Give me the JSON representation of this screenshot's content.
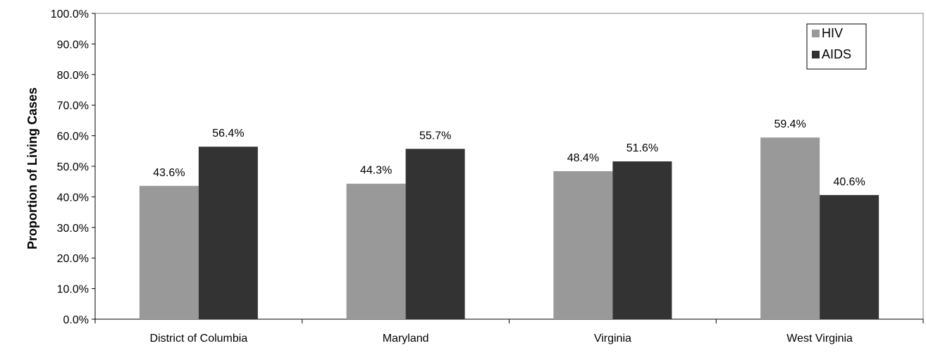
{
  "chart_data": {
    "type": "bar",
    "title": "",
    "xlabel": "",
    "ylabel": "Proportion of Living Cases",
    "ylim": [
      0,
      100
    ],
    "yticks": [
      0,
      10,
      20,
      30,
      40,
      50,
      60,
      70,
      80,
      90,
      100
    ],
    "ytick_labels": [
      "0.0%",
      "10.0%",
      "20.0%",
      "30.0%",
      "40.0%",
      "50.0%",
      "60.0%",
      "70.0%",
      "80.0%",
      "90.0%",
      "100.0%"
    ],
    "categories": [
      "District of Columbia",
      "Maryland",
      "Virginia",
      "West Virginia"
    ],
    "series": [
      {
        "name": "HIV",
        "color": "#999999",
        "values": [
          43.6,
          44.3,
          48.4,
          59.4
        ],
        "labels": [
          "43.6%",
          "44.3%",
          "48.4%",
          "59.4%"
        ]
      },
      {
        "name": "AIDS",
        "color": "#333333",
        "values": [
          56.4,
          55.7,
          51.6,
          40.6
        ],
        "labels": [
          "56.4%",
          "55.7%",
          "51.6%",
          "40.6%"
        ]
      }
    ],
    "legend": {
      "placement": "top-right"
    },
    "grid": false
  }
}
